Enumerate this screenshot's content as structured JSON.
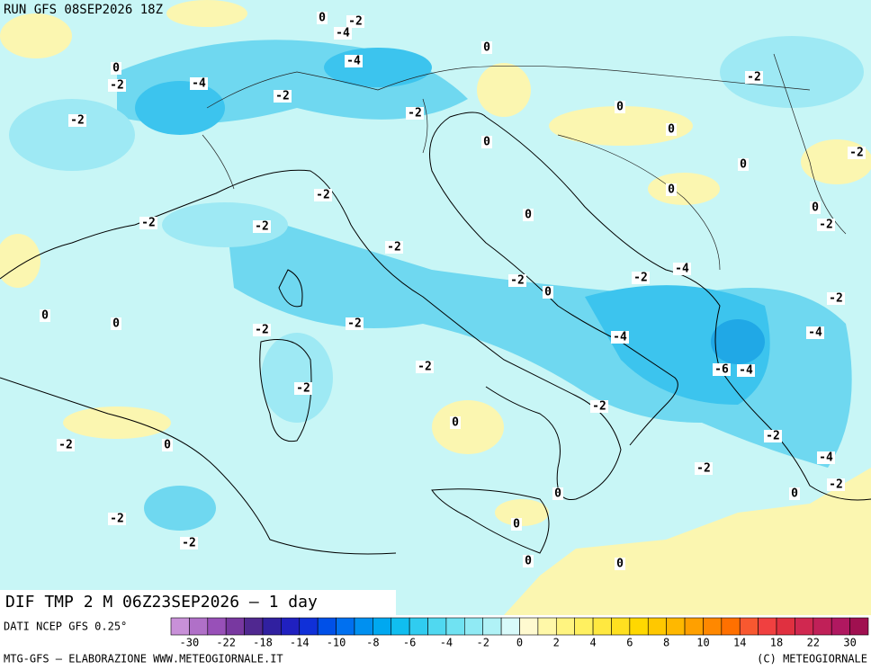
{
  "header": {
    "run": "RUN GFS 08SEP2026 18Z"
  },
  "map": {
    "contour_labels": [
      0,
      -2,
      -4,
      0,
      0,
      -4,
      -2,
      -4,
      -2,
      -2,
      0,
      -2,
      -2,
      0,
      0,
      -2,
      0,
      0,
      -2,
      0,
      0,
      -2,
      -2,
      -2,
      -2,
      -4,
      -2,
      -2,
      0,
      -2,
      0,
      0,
      -2,
      -2,
      -4,
      -4,
      -6,
      -4,
      -2,
      -2,
      -2,
      0,
      -2,
      -2,
      0,
      -4,
      -2,
      -2,
      0,
      0,
      -2,
      0,
      -2,
      0,
      0
    ]
  },
  "footer": {
    "title": "DIF TMP 2 M 06Z23SEP2026 – 1 day",
    "source": "DATI NCEP GFS 0.25°",
    "credit": "MTG-GFS – ELABORAZIONE WWW.METEOGIORNALE.IT",
    "copyright": "(C) METEOGIORNALE"
  },
  "colorbar": {
    "labels": [
      -30,
      -22,
      -18,
      -14,
      -10,
      -8,
      -6,
      -4,
      -2,
      0,
      2,
      4,
      6,
      8,
      10,
      14,
      18,
      22,
      30
    ],
    "colors": [
      "#c890d8",
      "#b070c8",
      "#9850b8",
      "#7838a0",
      "#502890",
      "#3020a0",
      "#2020c0",
      "#1030d8",
      "#0050e8",
      "#0070f0",
      "#0090f0",
      "#00a8f0",
      "#10bef0",
      "#30ccf0",
      "#50d8f0",
      "#70e2f2",
      "#90eaf4",
      "#b0f2f6",
      "#d8fafa",
      "#fffad0",
      "#fff8a8",
      "#fff480",
      "#fff060",
      "#ffe840",
      "#ffe020",
      "#ffd800",
      "#ffc800",
      "#ffb800",
      "#ffa000",
      "#ff8800",
      "#ff7000",
      "#f85830",
      "#f04040",
      "#e03040",
      "#d02850",
      "#c02058",
      "#b01860",
      "#a01050"
    ]
  }
}
